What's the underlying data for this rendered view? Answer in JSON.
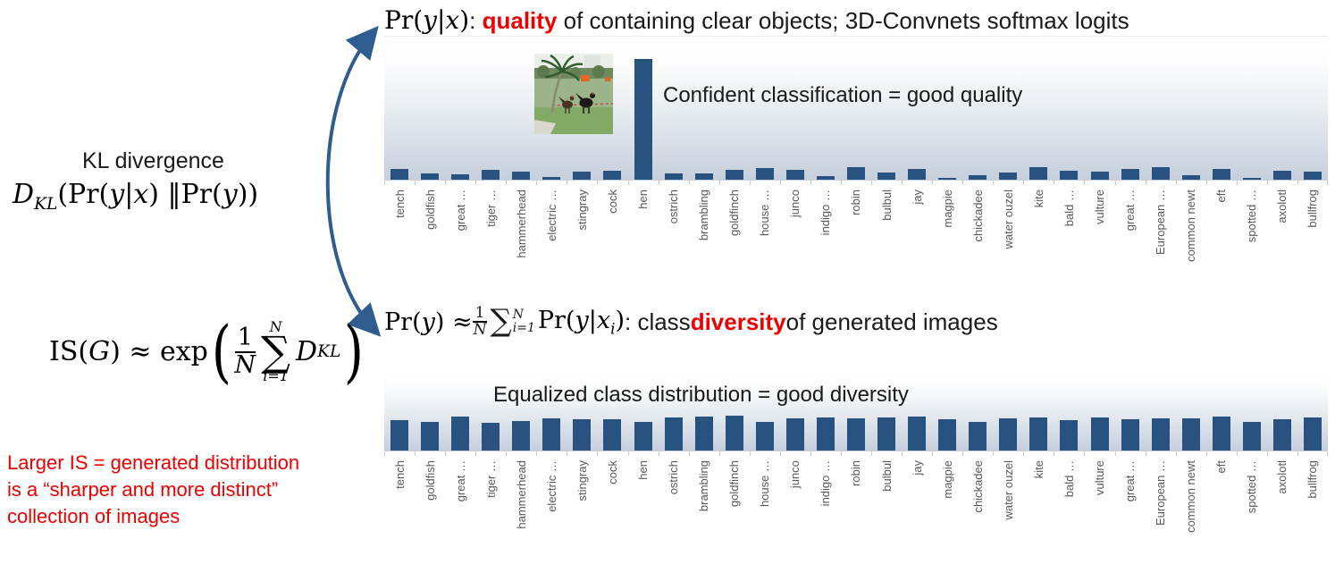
{
  "slide": {
    "top_line": {
      "pr": "Pr(",
      "y": "y",
      "bar": "|",
      "x": "x",
      "close": ")",
      "colon": ": ",
      "highlight": "quality",
      "rest": " of containing clear objects; 3D-Convnets softmax logits"
    },
    "kl_label": "KL divergence",
    "dkl": {
      "D": "D",
      "sub": "KL",
      "open": "(",
      "pr1": "Pr(",
      "y1": "y",
      "bar": "|",
      "x1": "x",
      "close1": ")",
      "norm": " ‖",
      "pr2": "Pr(",
      "y2": "y",
      "close2": ")",
      "close": ")"
    },
    "is_formula": {
      "lhs": "IS(",
      "G": "G",
      "mid": ") ≈ exp",
      "lp": "(",
      "num": "1",
      "den": "N",
      "sigma": "∑",
      "lim_top": "N",
      "lim_bot": "i=1",
      "D": "D",
      "Dsub": "KL",
      "rp": ")"
    },
    "bottom_line": {
      "pr": "Pr(",
      "y": "y",
      "close": ")",
      "approx": " ≈ ",
      "num": "1",
      "den": "N",
      "sigma": "∑",
      "lim_top": "N",
      "lim_bot": "i=1",
      "pr2": "Pr(",
      "y2": "y",
      "bar": "|",
      "x2": "x",
      "xsub": "i",
      "close2": ")",
      "colon": ": class ",
      "highlight": "diversity",
      "rest": " of generated images"
    },
    "note": {
      "line1": "Larger IS = generated distribution",
      "line2": "is a “sharper and more distinct”",
      "line3": "collection of images"
    },
    "colors": {
      "bar": "#28527f",
      "accent_red": "#ee0000",
      "arrow": "#2f5d8f",
      "label_gray": "#595959"
    }
  },
  "chart_data": [
    {
      "type": "bar",
      "title": "",
      "annotation": "Confident classification = good quality",
      "categories": [
        "tench",
        "goldfish",
        "great …",
        "tiger …",
        "hammerhead",
        "electric …",
        "stingray",
        "cock",
        "hen",
        "ostrich",
        "brambling",
        "goldfinch",
        "house …",
        "junco",
        "indigo …",
        "robin",
        "bulbul",
        "jay",
        "magpie",
        "chickadee",
        "water ouzel",
        "kite",
        "bald …",
        "vulture",
        "great …",
        "European …",
        "common newt",
        "eft",
        "spotted …",
        "axolotl",
        "bullfrog"
      ],
      "values": [
        0.075,
        0.044,
        0.038,
        0.069,
        0.056,
        0.019,
        0.056,
        0.063,
        0.845,
        0.044,
        0.044,
        0.069,
        0.081,
        0.069,
        0.025,
        0.088,
        0.05,
        0.075,
        0.013,
        0.031,
        0.05,
        0.088,
        0.063,
        0.056,
        0.075,
        0.088,
        0.031,
        0.075,
        0.013,
        0.063,
        0.056
      ],
      "xlabel": "",
      "ylabel": "",
      "ylim": [
        0,
        1
      ],
      "grid": false,
      "legend": false,
      "bar_color": "#28527f"
    },
    {
      "type": "bar",
      "title": "",
      "annotation": "Equalized class distribution = good diversity",
      "categories": [
        "tench",
        "goldfish",
        "great …",
        "tiger …",
        "hammerhead",
        "electric …",
        "stingray",
        "cock",
        "hen",
        "ostrich",
        "brambling",
        "goldfinch",
        "house …",
        "junco",
        "indigo …",
        "robin",
        "bulbul",
        "jay",
        "magpie",
        "chickadee",
        "water ouzel",
        "kite",
        "bald …",
        "vulture",
        "great …",
        "European …",
        "common newt",
        "eft",
        "spotted …",
        "axolotl",
        "bullfrog"
      ],
      "values": [
        0.38,
        0.36,
        0.42,
        0.35,
        0.37,
        0.4,
        0.39,
        0.39,
        0.36,
        0.41,
        0.42,
        0.43,
        0.36,
        0.4,
        0.41,
        0.4,
        0.41,
        0.42,
        0.39,
        0.36,
        0.4,
        0.41,
        0.38,
        0.41,
        0.39,
        0.4,
        0.4,
        0.42,
        0.36,
        0.39,
        0.41
      ],
      "xlabel": "",
      "ylabel": "",
      "ylim": [
        0,
        1
      ],
      "grid": false,
      "legend": false,
      "bar_color": "#28527f"
    }
  ]
}
